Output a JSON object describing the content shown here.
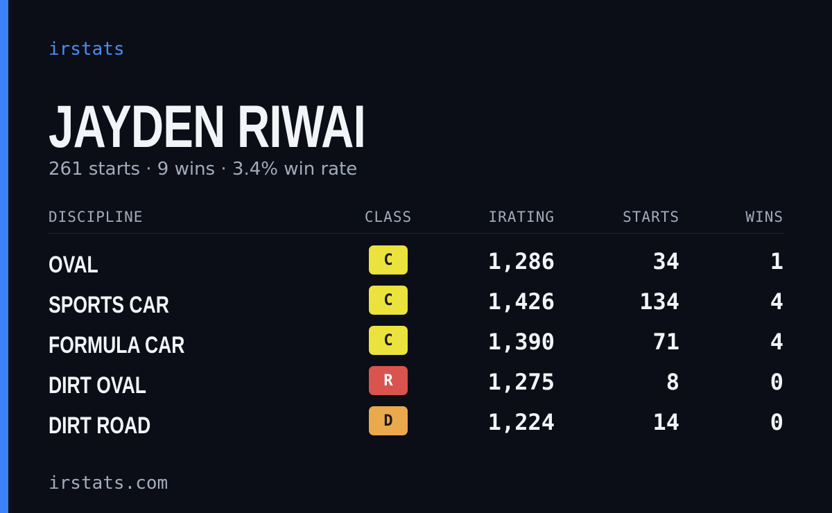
{
  "brand": "irstats",
  "driver": {
    "name": "JAYDEN RIWAI",
    "summary": "261 starts · 9 wins · 3.4% win rate"
  },
  "table": {
    "headers": [
      "DISCIPLINE",
      "CLASS",
      "IRATING",
      "STARTS",
      "WINS"
    ],
    "rows": [
      [
        "OVAL",
        "C",
        "1,286",
        "34",
        "1"
      ],
      [
        "SPORTS CAR",
        "C",
        "1,426",
        "134",
        "4"
      ],
      [
        "FORMULA CAR",
        "C",
        "1,390",
        "71",
        "4"
      ],
      [
        "DIRT OVAL",
        "R",
        "1,275",
        "8",
        "0"
      ],
      [
        "DIRT ROAD",
        "D",
        "1,224",
        "14",
        "0"
      ]
    ],
    "class_colors": [
      "#ebe23e",
      "#ebe23e",
      "#ebe23e",
      "#d9534f",
      "#eaa94d"
    ]
  },
  "footer": "irstats.com"
}
